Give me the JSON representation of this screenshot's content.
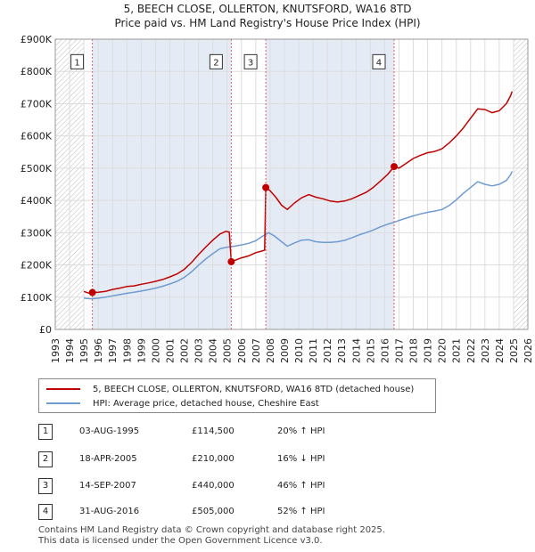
{
  "title_line1": "5, BEECH CLOSE, OLLERTON, KNUTSFORD, WA16 8TD",
  "title_line2": "Price paid vs. HM Land Registry's House Price Index (HPI)",
  "chart_data": {
    "type": "line",
    "xlim": [
      1993,
      2026
    ],
    "ylim": [
      0,
      900000
    ],
    "yticks": [
      {
        "value": 0,
        "label": "£0"
      },
      {
        "value": 100000,
        "label": "£100K"
      },
      {
        "value": 200000,
        "label": "£200K"
      },
      {
        "value": 300000,
        "label": "£300K"
      },
      {
        "value": 400000,
        "label": "£400K"
      },
      {
        "value": 500000,
        "label": "£500K"
      },
      {
        "value": 600000,
        "label": "£600K"
      },
      {
        "value": 700000,
        "label": "£700K"
      },
      {
        "value": 800000,
        "label": "£800K"
      },
      {
        "value": 900000,
        "label": "£900K"
      }
    ],
    "xticks": [
      "1993",
      "1994",
      "1995",
      "1996",
      "1997",
      "1998",
      "1999",
      "2000",
      "2001",
      "2002",
      "2003",
      "2004",
      "2005",
      "2006",
      "2007",
      "2008",
      "2009",
      "2010",
      "2011",
      "2012",
      "2013",
      "2014",
      "2015",
      "2016",
      "2017",
      "2018",
      "2019",
      "2020",
      "2021",
      "2022",
      "2023",
      "2024",
      "2025",
      "2026"
    ],
    "hatched_ranges": [
      [
        1993,
        1995.0
      ],
      [
        2025.0,
        2026
      ]
    ],
    "shaded_ranges": [
      [
        1995.59,
        2005.29
      ],
      [
        2007.7,
        2016.66
      ]
    ],
    "series": [
      {
        "name": "5, BEECH CLOSE, OLLERTON, KNUTSFORD, WA16 8TD (detached house)",
        "color": "#c00000",
        "points": [
          [
            1995.0,
            118000
          ],
          [
            1995.3,
            113000
          ],
          [
            1995.59,
            114500
          ],
          [
            1996.0,
            115000
          ],
          [
            1996.5,
            118000
          ],
          [
            1997.0,
            124000
          ],
          [
            1997.5,
            128000
          ],
          [
            1998.0,
            133000
          ],
          [
            1998.5,
            135000
          ],
          [
            1999.0,
            140000
          ],
          [
            1999.5,
            144000
          ],
          [
            2000.0,
            149000
          ],
          [
            2000.5,
            155000
          ],
          [
            2001.0,
            163000
          ],
          [
            2001.5,
            172000
          ],
          [
            2002.0,
            186000
          ],
          [
            2002.5,
            207000
          ],
          [
            2003.0,
            232000
          ],
          [
            2003.5,
            255000
          ],
          [
            2004.0,
            277000
          ],
          [
            2004.5,
            296000
          ],
          [
            2004.9,
            304000
          ],
          [
            2005.15,
            302000
          ],
          [
            2005.29,
            210000
          ],
          [
            2005.6,
            215000
          ],
          [
            2006.0,
            222000
          ],
          [
            2006.5,
            228000
          ],
          [
            2007.0,
            238000
          ],
          [
            2007.5,
            244000
          ],
          [
            2007.62,
            246000
          ],
          [
            2007.7,
            440000
          ],
          [
            2008.0,
            430000
          ],
          [
            2008.4,
            410000
          ],
          [
            2008.8,
            385000
          ],
          [
            2009.2,
            372000
          ],
          [
            2009.7,
            392000
          ],
          [
            2010.2,
            408000
          ],
          [
            2010.7,
            418000
          ],
          [
            2011.2,
            410000
          ],
          [
            2011.7,
            405000
          ],
          [
            2012.2,
            398000
          ],
          [
            2012.7,
            395000
          ],
          [
            2013.2,
            398000
          ],
          [
            2013.7,
            405000
          ],
          [
            2014.2,
            415000
          ],
          [
            2014.7,
            425000
          ],
          [
            2015.2,
            440000
          ],
          [
            2015.7,
            460000
          ],
          [
            2016.2,
            480000
          ],
          [
            2016.66,
            505000
          ],
          [
            2017.0,
            500000
          ],
          [
            2017.5,
            515000
          ],
          [
            2018.0,
            530000
          ],
          [
            2018.5,
            540000
          ],
          [
            2019.0,
            548000
          ],
          [
            2019.5,
            552000
          ],
          [
            2020.0,
            560000
          ],
          [
            2020.5,
            578000
          ],
          [
            2021.0,
            600000
          ],
          [
            2021.5,
            625000
          ],
          [
            2022.0,
            655000
          ],
          [
            2022.5,
            684000
          ],
          [
            2023.0,
            682000
          ],
          [
            2023.5,
            672000
          ],
          [
            2024.0,
            678000
          ],
          [
            2024.5,
            700000
          ],
          [
            2024.8,
            725000
          ],
          [
            2024.9,
            738000
          ]
        ]
      },
      {
        "name": "HPI: Average price, detached house, Cheshire East",
        "color": "#6f9bd1",
        "points": [
          [
            1995.0,
            97000
          ],
          [
            1995.5,
            95000
          ],
          [
            1996.0,
            97000
          ],
          [
            1996.5,
            100000
          ],
          [
            1997.0,
            104000
          ],
          [
            1997.5,
            108000
          ],
          [
            1998.0,
            112000
          ],
          [
            1998.5,
            115000
          ],
          [
            1999.0,
            119000
          ],
          [
            1999.5,
            123000
          ],
          [
            2000.0,
            128000
          ],
          [
            2000.5,
            134000
          ],
          [
            2001.0,
            141000
          ],
          [
            2001.5,
            149000
          ],
          [
            2002.0,
            161000
          ],
          [
            2002.5,
            178000
          ],
          [
            2003.0,
            199000
          ],
          [
            2003.5,
            218000
          ],
          [
            2004.0,
            235000
          ],
          [
            2004.5,
            250000
          ],
          [
            2005.0,
            255000
          ],
          [
            2005.5,
            258000
          ],
          [
            2006.0,
            262000
          ],
          [
            2006.5,
            267000
          ],
          [
            2007.0,
            275000
          ],
          [
            2007.5,
            290000
          ],
          [
            2007.9,
            300000
          ],
          [
            2008.3,
            290000
          ],
          [
            2008.8,
            272000
          ],
          [
            2009.2,
            258000
          ],
          [
            2009.7,
            268000
          ],
          [
            2010.2,
            277000
          ],
          [
            2010.7,
            278000
          ],
          [
            2011.2,
            272000
          ],
          [
            2011.7,
            270000
          ],
          [
            2012.2,
            270000
          ],
          [
            2012.7,
            272000
          ],
          [
            2013.2,
            276000
          ],
          [
            2013.7,
            284000
          ],
          [
            2014.2,
            293000
          ],
          [
            2014.7,
            300000
          ],
          [
            2015.2,
            308000
          ],
          [
            2015.7,
            318000
          ],
          [
            2016.2,
            326000
          ],
          [
            2016.66,
            332000
          ],
          [
            2017.0,
            338000
          ],
          [
            2017.5,
            345000
          ],
          [
            2018.0,
            352000
          ],
          [
            2018.5,
            358000
          ],
          [
            2019.0,
            363000
          ],
          [
            2019.5,
            367000
          ],
          [
            2020.0,
            372000
          ],
          [
            2020.5,
            384000
          ],
          [
            2021.0,
            402000
          ],
          [
            2021.5,
            422000
          ],
          [
            2022.0,
            440000
          ],
          [
            2022.5,
            458000
          ],
          [
            2023.0,
            450000
          ],
          [
            2023.5,
            445000
          ],
          [
            2024.0,
            450000
          ],
          [
            2024.5,
            462000
          ],
          [
            2024.8,
            480000
          ],
          [
            2024.9,
            490000
          ]
        ]
      }
    ],
    "sales": [
      {
        "label": "1",
        "x": 1995.59,
        "y": 114500
      },
      {
        "label": "2",
        "x": 2005.29,
        "y": 210000
      },
      {
        "label": "3",
        "x": 2007.7,
        "y": 440000
      },
      {
        "label": "4",
        "x": 2016.66,
        "y": 505000
      }
    ]
  },
  "legend": {
    "items": [
      {
        "label": "5, BEECH CLOSE, OLLERTON, KNUTSFORD, WA16 8TD (detached house)",
        "color": "#c00000"
      },
      {
        "label": "HPI: Average price, detached house, Cheshire East",
        "color": "#6f9bd1"
      }
    ]
  },
  "transactions": [
    {
      "num": "1",
      "date": "03-AUG-1995",
      "price": "£114,500",
      "hpi": "20% ↑ HPI"
    },
    {
      "num": "2",
      "date": "18-APR-2005",
      "price": "£210,000",
      "hpi": "16% ↓ HPI"
    },
    {
      "num": "3",
      "date": "14-SEP-2007",
      "price": "£440,000",
      "hpi": "46% ↑ HPI"
    },
    {
      "num": "4",
      "date": "31-AUG-2016",
      "price": "£505,000",
      "hpi": "52% ↑ HPI"
    }
  ],
  "footer": {
    "line1": "Contains HM Land Registry data © Crown copyright and database right 2025.",
    "line2": "This data is licensed under the Open Government Licence v3.0."
  }
}
